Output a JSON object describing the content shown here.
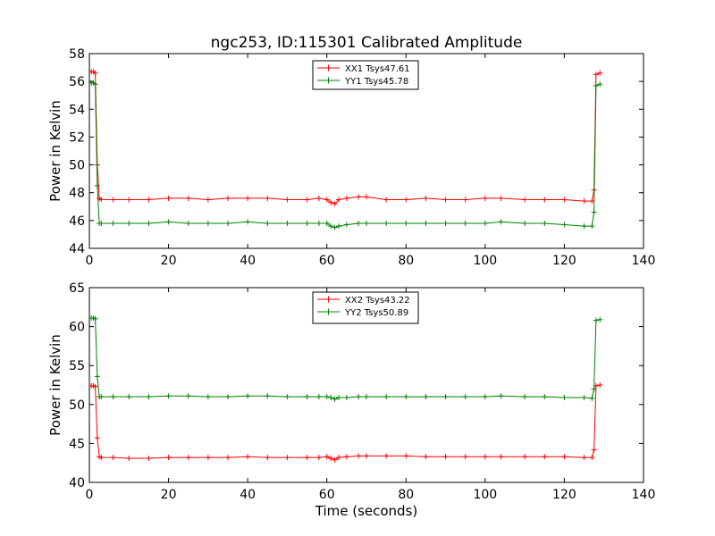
{
  "figure": {
    "title": "ngc253, ID:115301 Calibrated Amplitude"
  },
  "chart_data": [
    {
      "type": "line",
      "title": "ngc253, ID:115301 Calibrated Amplitude",
      "xlabel": "",
      "ylabel": "Power in Kelvin",
      "xlim": [
        0,
        140
      ],
      "ylim": [
        44,
        58
      ],
      "xticks": [
        "0",
        "20",
        "40",
        "60",
        "80",
        "100",
        "120",
        "140"
      ],
      "yticks": [
        "44",
        "46",
        "48",
        "50",
        "52",
        "54",
        "56",
        "58"
      ],
      "legend_position": "top-center",
      "series": [
        {
          "name": "XX1 Tsys47.61",
          "color": "#ff0000",
          "x": [
            0.5,
            1.0,
            1.5,
            2.0,
            2.5,
            3,
            6,
            10,
            15,
            20,
            25,
            30,
            35,
            40,
            45,
            50,
            55,
            58,
            60,
            61,
            62,
            63,
            65,
            68,
            70,
            75,
            80,
            85,
            90,
            95,
            100,
            104,
            110,
            115,
            120,
            125,
            127,
            127.5,
            128,
            129
          ],
          "y": [
            56.7,
            56.7,
            56.6,
            50.0,
            47.6,
            47.5,
            47.5,
            47.5,
            47.5,
            47.6,
            47.6,
            47.5,
            47.6,
            47.6,
            47.6,
            47.5,
            47.5,
            47.6,
            47.5,
            47.3,
            47.2,
            47.5,
            47.6,
            47.7,
            47.7,
            47.5,
            47.5,
            47.6,
            47.5,
            47.5,
            47.6,
            47.6,
            47.5,
            47.5,
            47.5,
            47.4,
            47.4,
            48.2,
            56.5,
            56.6
          ]
        },
        {
          "name": "YY1 Tsys45.78",
          "color": "#008000",
          "x": [
            0.5,
            1.0,
            1.5,
            2.0,
            2.5,
            3,
            6,
            10,
            15,
            20,
            25,
            30,
            35,
            40,
            45,
            50,
            55,
            58,
            60,
            61,
            62,
            63,
            65,
            68,
            70,
            75,
            80,
            85,
            90,
            95,
            100,
            104,
            110,
            115,
            120,
            125,
            127,
            127.5,
            128,
            129
          ],
          "y": [
            55.9,
            55.9,
            55.8,
            48.5,
            45.8,
            45.8,
            45.8,
            45.8,
            45.8,
            45.9,
            45.8,
            45.8,
            45.8,
            45.9,
            45.8,
            45.8,
            45.8,
            45.8,
            45.8,
            45.6,
            45.5,
            45.6,
            45.7,
            45.8,
            45.8,
            45.8,
            45.8,
            45.8,
            45.8,
            45.8,
            45.8,
            45.9,
            45.8,
            45.8,
            45.7,
            45.6,
            45.6,
            46.6,
            55.7,
            55.8
          ]
        }
      ]
    },
    {
      "type": "line",
      "title": "",
      "xlabel": "Time (seconds)",
      "ylabel": "Power in Kelvin",
      "xlim": [
        0,
        140
      ],
      "ylim": [
        40,
        65
      ],
      "xticks": [
        "0",
        "20",
        "40",
        "60",
        "80",
        "100",
        "120",
        "140"
      ],
      "yticks": [
        "40",
        "45",
        "50",
        "55",
        "60",
        "65"
      ],
      "legend_position": "top-center",
      "series": [
        {
          "name": "XX2 Tsys43.22",
          "color": "#ff0000",
          "x": [
            0.5,
            1.0,
            1.5,
            2.0,
            2.5,
            3,
            6,
            10,
            15,
            20,
            25,
            30,
            35,
            40,
            45,
            50,
            55,
            58,
            60,
            61,
            62,
            63,
            65,
            68,
            70,
            75,
            80,
            85,
            90,
            95,
            100,
            104,
            110,
            115,
            120,
            125,
            127,
            127.5,
            128,
            129
          ],
          "y": [
            52.4,
            52.4,
            52.3,
            45.7,
            43.3,
            43.2,
            43.2,
            43.1,
            43.1,
            43.2,
            43.2,
            43.2,
            43.2,
            43.3,
            43.2,
            43.2,
            43.2,
            43.2,
            43.3,
            43.1,
            42.9,
            43.2,
            43.3,
            43.4,
            43.4,
            43.4,
            43.4,
            43.3,
            43.3,
            43.3,
            43.3,
            43.3,
            43.3,
            43.3,
            43.3,
            43.2,
            43.2,
            44.2,
            52.4,
            52.5
          ]
        },
        {
          "name": "YY2 Tsys50.89",
          "color": "#008000",
          "x": [
            0.5,
            1.0,
            1.5,
            2.0,
            2.5,
            3,
            6,
            10,
            15,
            20,
            25,
            30,
            35,
            40,
            45,
            50,
            55,
            58,
            60,
            61,
            62,
            63,
            65,
            68,
            70,
            75,
            80,
            85,
            90,
            95,
            100,
            104,
            110,
            115,
            120,
            125,
            127,
            127.5,
            128,
            129
          ],
          "y": [
            61.1,
            61.1,
            61.0,
            53.6,
            51.0,
            51.0,
            51.0,
            51.0,
            51.0,
            51.1,
            51.1,
            51.0,
            51.0,
            51.1,
            51.1,
            51.0,
            51.0,
            51.0,
            51.0,
            50.9,
            50.7,
            50.9,
            50.9,
            51.0,
            51.0,
            51.0,
            51.0,
            51.0,
            51.0,
            51.0,
            51.0,
            51.1,
            51.0,
            51.0,
            50.9,
            50.9,
            50.8,
            52.0,
            60.8,
            60.9
          ]
        }
      ]
    }
  ]
}
